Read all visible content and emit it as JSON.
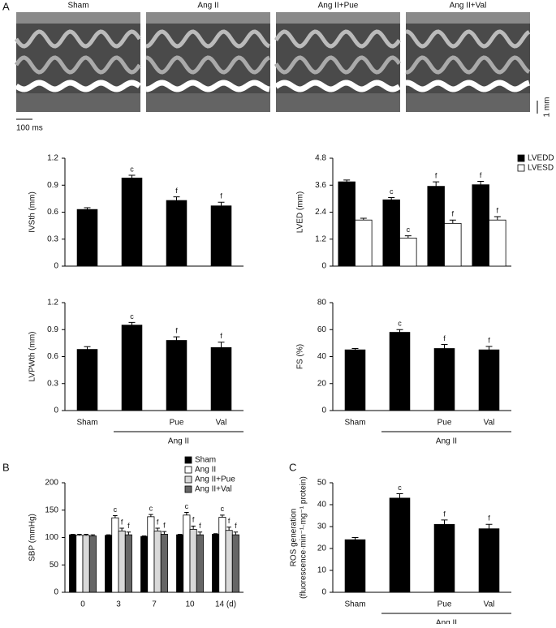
{
  "panel_a": {
    "label": "A",
    "images": [
      "Sham",
      "Ang II",
      "Ang II+Pue",
      "Ang II+Val"
    ],
    "time_scale": "100 ms",
    "depth_scale": "1 mm"
  },
  "panel_b_label": "B",
  "panel_c_label": "C",
  "chart_data": [
    {
      "type": "bar",
      "ylabel": "IVSth (mm)",
      "ylim": [
        0,
        1.2
      ],
      "yticks": [
        0,
        0.3,
        0.6,
        0.9,
        1.2
      ],
      "color": "#000000",
      "values": [
        0.63,
        0.98,
        0.73,
        0.67
      ],
      "errors": [
        0.02,
        0.03,
        0.04,
        0.04
      ],
      "annotations": [
        null,
        "c",
        "f",
        "f"
      ]
    },
    {
      "type": "bar",
      "ylabel": "LVED (mm)",
      "ylim": [
        0,
        4.8
      ],
      "yticks": [
        0,
        1.2,
        2.4,
        3.6,
        4.8
      ],
      "legend": "upper right",
      "series": [
        {
          "name": "LVEDD",
          "color": "#000000",
          "values": [
            3.75,
            2.95,
            3.55,
            3.62
          ],
          "errors": [
            0.08,
            0.1,
            0.2,
            0.15
          ],
          "annotations": [
            null,
            "c",
            "f",
            "f"
          ]
        },
        {
          "name": "LVESD",
          "color": "#ffffff",
          "values": [
            2.05,
            1.25,
            1.9,
            2.05
          ],
          "errors": [
            0.08,
            0.1,
            0.15,
            0.15
          ],
          "annotations": [
            null,
            "c",
            "f",
            "f"
          ]
        }
      ]
    },
    {
      "type": "bar",
      "ylabel": "LVPWth (mm)",
      "ylim": [
        0,
        1.2
      ],
      "yticks": [
        0,
        0.3,
        0.6,
        0.9,
        1.2
      ],
      "color": "#000000",
      "categories": [
        "Sham",
        null,
        "Pue",
        "Val"
      ],
      "group_label": "Ang II",
      "values": [
        0.68,
        0.95,
        0.78,
        0.7
      ],
      "errors": [
        0.03,
        0.03,
        0.04,
        0.06
      ],
      "annotations": [
        null,
        "c",
        "f",
        "f"
      ]
    },
    {
      "type": "bar",
      "ylabel": "FS (%)",
      "ylim": [
        0,
        80
      ],
      "yticks": [
        0,
        20,
        40,
        60,
        80
      ],
      "color": "#000000",
      "categories": [
        "Sham",
        null,
        "Pue",
        "Val"
      ],
      "group_label": "Ang II",
      "values": [
        45,
        58,
        46,
        45
      ],
      "errors": [
        1,
        2,
        3,
        2.5
      ],
      "annotations": [
        null,
        "c",
        "f",
        "f"
      ]
    },
    {
      "type": "bar",
      "ylabel": "SBP (mmHg)",
      "ylim": [
        0,
        200
      ],
      "yticks": [
        0,
        50,
        100,
        150,
        200
      ],
      "legend": "upper right",
      "categories": [
        "0",
        "3",
        "7",
        "10",
        "14 (d)"
      ],
      "series": [
        {
          "name": "Sham",
          "color": "#000000",
          "values": [
            105,
            104,
            102,
            105,
            106
          ],
          "errors": [
            1,
            1,
            1,
            1,
            1
          ]
        },
        {
          "name": "Ang II",
          "color": "#ffffff",
          "values": [
            104,
            136,
            138,
            141,
            137
          ],
          "errors": [
            2,
            4,
            4,
            5,
            4
          ],
          "annotations": [
            null,
            "c",
            "c",
            "c",
            "c"
          ]
        },
        {
          "name": "Ang II+Pue",
          "color": "#d9d9d9",
          "values": [
            104,
            112,
            112,
            115,
            113
          ],
          "errors": [
            2,
            5,
            5,
            6,
            6
          ],
          "annotations": [
            null,
            "f",
            "f",
            "f",
            "f"
          ]
        },
        {
          "name": "Ang II+Val",
          "color": "#666666",
          "values": [
            103,
            105,
            106,
            105,
            105
          ],
          "errors": [
            2,
            5,
            5,
            5,
            5
          ],
          "annotations": [
            null,
            "f",
            "f",
            "f",
            "f"
          ]
        }
      ]
    },
    {
      "type": "bar",
      "ylabel": [
        "ROS generation",
        "(fluorescence·min⁻¹·mg⁻¹ protein)"
      ],
      "ylim": [
        0,
        50
      ],
      "yticks": [
        0,
        10,
        20,
        30,
        40,
        50
      ],
      "color": "#000000",
      "categories": [
        "Sham",
        null,
        "Pue",
        "Val"
      ],
      "group_label": "Ang II",
      "values": [
        24,
        43,
        31,
        29
      ],
      "errors": [
        1,
        2,
        2,
        2
      ],
      "annotations": [
        null,
        "c",
        "f",
        "f"
      ]
    }
  ]
}
